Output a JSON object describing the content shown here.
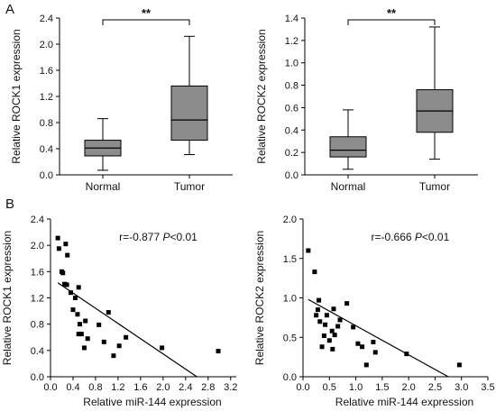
{
  "panels": [
    {
      "letter": "A"
    },
    {
      "letter": "B"
    }
  ],
  "colors": {
    "box_fill": "#8c8c8c",
    "axis": "#000000",
    "point": "#000000"
  },
  "chart_data": [
    {
      "type": "box",
      "panel": "A",
      "ylabel": "Relative ROCK1 expression",
      "categories": [
        "Normal",
        "Tumor"
      ],
      "ylim": [
        0,
        2.4
      ],
      "yticks": [
        0.0,
        0.4,
        0.8,
        1.2,
        1.6,
        2.0,
        2.4
      ],
      "ytick_labels": [
        "0.0",
        "0.4",
        "0.8",
        "1.2",
        "1.6",
        "2.0",
        "2.4"
      ],
      "boxes": [
        {
          "min": 0.07,
          "q1": 0.29,
          "median": 0.41,
          "q3": 0.53,
          "max": 0.86
        },
        {
          "min": 0.31,
          "q1": 0.53,
          "median": 0.84,
          "q3": 1.36,
          "max": 2.12
        }
      ],
      "significance": "**"
    },
    {
      "type": "box",
      "panel": "A",
      "ylabel": "Relative ROCK2 expression",
      "categories": [
        "Normal",
        "Tumor"
      ],
      "ylim": [
        0,
        1.4
      ],
      "yticks": [
        0.0,
        0.2,
        0.4,
        0.6,
        0.8,
        1.0,
        1.2,
        1.4
      ],
      "ytick_labels": [
        "0.0",
        "0.2",
        "0.4",
        "0.6",
        "0.8",
        "1.0",
        "1.2",
        "1.4"
      ],
      "boxes": [
        {
          "min": 0.05,
          "q1": 0.16,
          "median": 0.22,
          "q3": 0.34,
          "max": 0.58
        },
        {
          "min": 0.14,
          "q1": 0.38,
          "median": 0.57,
          "q3": 0.76,
          "max": 1.32
        }
      ],
      "significance": "**"
    },
    {
      "type": "scatter",
      "panel": "B",
      "xlabel": "Relative miR-144 expression",
      "ylabel": "Relative ROCK1 expression",
      "xlim": [
        0,
        3.3
      ],
      "ylim": [
        0,
        2.4
      ],
      "xticks": [
        0.0,
        0.4,
        0.8,
        1.2,
        1.6,
        2.0,
        2.4,
        2.8,
        3.2
      ],
      "xtick_labels": [
        "0.0",
        "0.4",
        "0.8",
        "1.2",
        "1.6",
        "2.0",
        "2.4",
        "2.8",
        "3.2"
      ],
      "yticks": [
        0.0,
        0.4,
        0.8,
        1.2,
        1.6,
        2.0,
        2.4
      ],
      "ytick_labels": [
        "0.0",
        "0.4",
        "0.8",
        "1.2",
        "1.6",
        "2.0",
        "2.4"
      ],
      "annotation": {
        "r": "r=-0.877",
        "p_italic": "P",
        "p_rest": "<0.01"
      },
      "points": [
        [
          0.13,
          2.11
        ],
        [
          0.15,
          1.95
        ],
        [
          0.27,
          2.02
        ],
        [
          0.2,
          1.6
        ],
        [
          0.22,
          1.58
        ],
        [
          0.25,
          1.41
        ],
        [
          0.29,
          1.4
        ],
        [
          0.3,
          1.85
        ],
        [
          0.36,
          1.28
        ],
        [
          0.4,
          1.02
        ],
        [
          0.44,
          1.2
        ],
        [
          0.48,
          0.95
        ],
        [
          0.5,
          1.36
        ],
        [
          0.52,
          0.8
        ],
        [
          0.5,
          0.65
        ],
        [
          0.55,
          0.65
        ],
        [
          0.6,
          0.44
        ],
        [
          0.62,
          0.85
        ],
        [
          0.66,
          0.58
        ],
        [
          0.86,
          0.79
        ],
        [
          0.95,
          0.53
        ],
        [
          1.03,
          0.98
        ],
        [
          1.12,
          0.32
        ],
        [
          1.22,
          0.47
        ],
        [
          1.34,
          0.6
        ],
        [
          1.98,
          0.44
        ],
        [
          2.98,
          0.39
        ]
      ],
      "fit_line": {
        "x": [
          0.13,
          2.6
        ],
        "y": [
          1.43,
          0.0
        ]
      }
    },
    {
      "type": "scatter",
      "panel": "B",
      "xlabel": "Relative miR-144 expression",
      "ylabel": "Relative ROCK2 expression",
      "xlim": [
        0,
        3.5
      ],
      "ylim": [
        0,
        2.0
      ],
      "xticks": [
        0.0,
        0.5,
        1.0,
        1.5,
        2.0,
        2.5,
        3.0,
        3.5
      ],
      "xtick_labels": [
        "0.0",
        "0.5",
        "1.0",
        "1.5",
        "2.0",
        "2.5",
        "3.0",
        "3.5"
      ],
      "yticks": [
        0.0,
        0.5,
        1.0,
        1.5,
        2.0
      ],
      "ytick_labels": [
        "0.0",
        "0.5",
        "1.0",
        "1.5",
        "2.0"
      ],
      "annotation": {
        "r": "r=-0.666",
        "p_italic": "P",
        "p_rest": "<0.01"
      },
      "points": [
        [
          0.1,
          1.6
        ],
        [
          0.22,
          1.33
        ],
        [
          0.3,
          0.97
        ],
        [
          0.25,
          0.78
        ],
        [
          0.28,
          0.85
        ],
        [
          0.32,
          0.7
        ],
        [
          0.36,
          0.38
        ],
        [
          0.4,
          0.52
        ],
        [
          0.42,
          0.66
        ],
        [
          0.45,
          0.78
        ],
        [
          0.5,
          0.46
        ],
        [
          0.55,
          0.58
        ],
        [
          0.56,
          0.35
        ],
        [
          0.58,
          0.86
        ],
        [
          0.6,
          0.53
        ],
        [
          0.66,
          0.64
        ],
        [
          0.7,
          0.72
        ],
        [
          0.83,
          0.93
        ],
        [
          0.95,
          0.63
        ],
        [
          1.04,
          0.42
        ],
        [
          1.12,
          0.38
        ],
        [
          1.2,
          0.15
        ],
        [
          1.33,
          0.44
        ],
        [
          1.37,
          0.31
        ],
        [
          1.96,
          0.29
        ],
        [
          2.96,
          0.15
        ]
      ],
      "fit_line": {
        "x": [
          0.1,
          2.75
        ],
        "y": [
          0.98,
          0.0
        ]
      }
    }
  ]
}
